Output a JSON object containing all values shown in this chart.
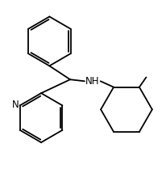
{
  "background_color": "#ffffff",
  "line_color": "#000000",
  "text_color": "#000000",
  "N_label": "N",
  "NH_label": "NH",
  "fig_width": 2.07,
  "fig_height": 2.15,
  "dpi": 100
}
